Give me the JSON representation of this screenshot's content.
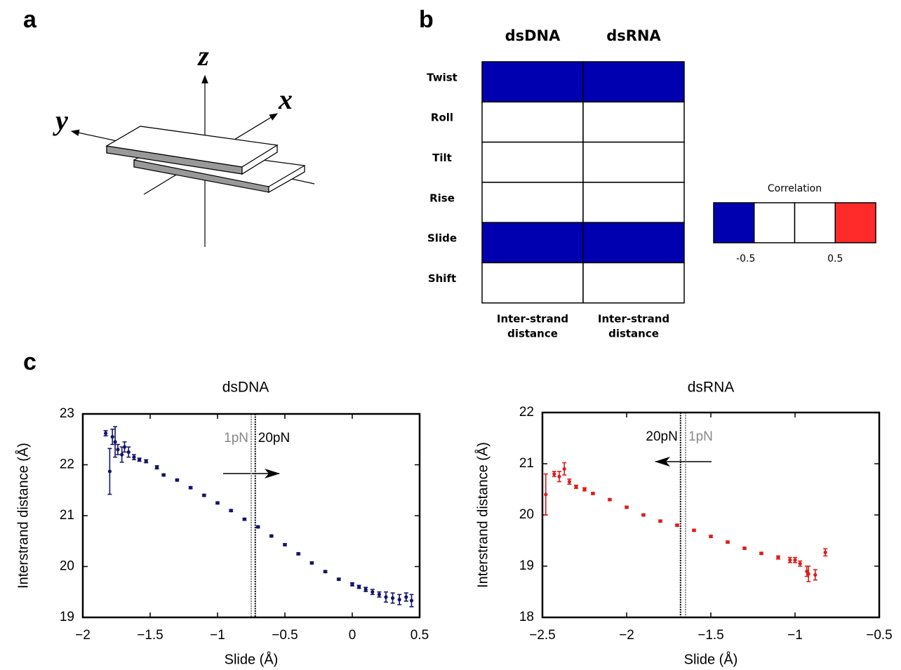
{
  "panel_labels": [
    "a",
    "b",
    "c"
  ],
  "diagram": {
    "axes": {
      "x": "x",
      "y": "y",
      "z": "z"
    }
  },
  "heatmap": {
    "columns": [
      "dsDNA",
      "dsRNA"
    ],
    "rows": [
      "Twist",
      "Roll",
      "Tilt",
      "Rise",
      "Slide",
      "Shift"
    ],
    "column_footers": [
      [
        "Inter-strand",
        "distance"
      ],
      [
        "Inter-strand",
        "distance"
      ]
    ],
    "values": [
      [
        -0.75,
        -0.75
      ],
      [
        0,
        0
      ],
      [
        0,
        0
      ],
      [
        0,
        0
      ],
      [
        -0.75,
        -0.75
      ],
      [
        0,
        0
      ]
    ],
    "colorbar": {
      "title": "Correlation",
      "range": [
        -1,
        1
      ],
      "colors": [
        "#0000b0",
        "#ffffff",
        "#ffffff",
        "#ff2a2a"
      ],
      "ticks": [
        -0.5,
        0.5
      ]
    }
  },
  "chart_data": [
    {
      "type": "scatter",
      "title": "dsDNA",
      "xlabel": "Slide (Å)",
      "ylabel": "Interstrand distance (Å)",
      "xlim": [
        -2,
        0.5
      ],
      "xticks": [
        {
          "value": -2,
          "label": "−2"
        },
        {
          "value": -1.5,
          "label": "−1.5"
        },
        {
          "value": -1,
          "label": "−1"
        },
        {
          "value": -0.5,
          "label": "−0.5"
        },
        0,
        0.5
      ],
      "ylim": [
        19,
        23
      ],
      "yticks": [
        19,
        20,
        21,
        22,
        23
      ],
      "vlines": [
        {
          "x": -0.75,
          "label": "1pN",
          "color": "#888888"
        },
        {
          "x": -0.72,
          "label": "20pN",
          "color": "#000000"
        }
      ],
      "series": [
        {
          "color": "#141466",
          "x": [
            -1.83,
            -1.8,
            -1.78,
            -1.76,
            -1.74,
            -1.71,
            -1.69,
            -1.66,
            -1.62,
            -1.58,
            -1.53,
            -1.45,
            -1.4,
            -1.3,
            -1.2,
            -1.1,
            -1.0,
            -0.9,
            -0.8,
            -0.7,
            -0.6,
            -0.5,
            -0.4,
            -0.3,
            -0.2,
            -0.1,
            0.0,
            0.05,
            0.1,
            0.15,
            0.2,
            0.25,
            0.3,
            0.35,
            0.4,
            0.44
          ],
          "values": [
            22.62,
            21.87,
            22.55,
            22.45,
            22.3,
            22.2,
            22.35,
            22.25,
            22.15,
            22.1,
            22.07,
            21.95,
            21.8,
            21.7,
            21.55,
            21.4,
            21.25,
            21.1,
            20.93,
            20.78,
            20.6,
            20.43,
            20.25,
            20.07,
            19.9,
            19.75,
            19.65,
            19.6,
            19.55,
            19.5,
            19.45,
            19.4,
            19.38,
            19.35,
            19.4,
            19.33
          ],
          "errors": [
            0.05,
            0.45,
            0.15,
            0.3,
            0.1,
            0.15,
            0.1,
            0.1,
            0.05,
            0.03,
            0.03,
            0.03,
            0.02,
            0.02,
            0.02,
            0.02,
            0.02,
            0.02,
            0.02,
            0.02,
            0.02,
            0.02,
            0.02,
            0.02,
            0.02,
            0.02,
            0.03,
            0.03,
            0.04,
            0.05,
            0.05,
            0.1,
            0.1,
            0.1,
            0.08,
            0.12
          ]
        }
      ]
    },
    {
      "type": "scatter",
      "title": "dsRNA",
      "xlabel": "Slide (Å)",
      "ylabel": "Interstrand distance (Å)",
      "xlim": [
        -2.5,
        -0.5
      ],
      "xticks": [
        {
          "value": -2.5,
          "label": "−2.5"
        },
        {
          "value": -2,
          "label": "−2"
        },
        {
          "value": -1.5,
          "label": "−1.5"
        },
        {
          "value": -1,
          "label": "−1"
        },
        {
          "value": -0.5,
          "label": "−0.5"
        }
      ],
      "ylim": [
        18,
        22
      ],
      "yticks": [
        18,
        19,
        20,
        21,
        22
      ],
      "vlines": [
        {
          "x": -1.68,
          "label": "20pN",
          "color": "#000000"
        },
        {
          "x": -1.65,
          "label": "1pN",
          "color": "#888888"
        }
      ],
      "series": [
        {
          "color": "#dd1c1c",
          "x": [
            -2.48,
            -2.43,
            -2.4,
            -2.37,
            -2.34,
            -2.3,
            -2.25,
            -2.2,
            -2.1,
            -2.0,
            -1.9,
            -1.8,
            -1.7,
            -1.6,
            -1.5,
            -1.4,
            -1.3,
            -1.2,
            -1.1,
            -1.03,
            -1.0,
            -0.97,
            -0.93,
            -0.92,
            -0.88,
            -0.82
          ],
          "values": [
            20.4,
            20.8,
            20.75,
            20.9,
            20.65,
            20.55,
            20.5,
            20.42,
            20.3,
            20.15,
            20.0,
            19.88,
            19.8,
            19.7,
            19.58,
            19.47,
            19.35,
            19.25,
            19.17,
            19.12,
            19.12,
            19.05,
            18.9,
            18.85,
            18.83,
            19.27
          ],
          "errors": [
            0.4,
            0.05,
            0.1,
            0.12,
            0.05,
            0.03,
            0.03,
            0.02,
            0.02,
            0.02,
            0.02,
            0.02,
            0.02,
            0.02,
            0.02,
            0.02,
            0.02,
            0.02,
            0.03,
            0.05,
            0.05,
            0.05,
            0.1,
            0.15,
            0.1,
            0.07
          ]
        }
      ]
    }
  ]
}
